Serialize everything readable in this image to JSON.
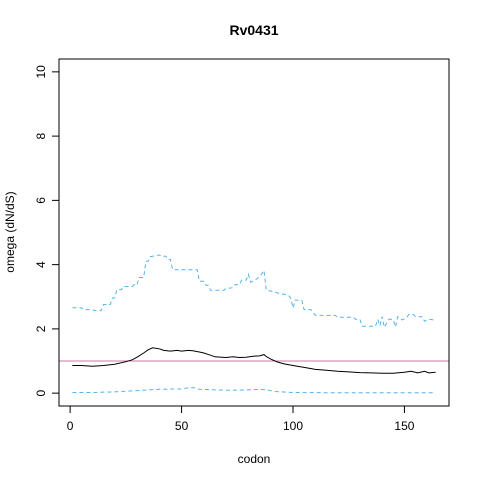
{
  "chart_data": {
    "type": "line",
    "title": "Rv0431",
    "xlabel": "codon",
    "ylabel": "omega (dN/dS)",
    "xlim": [
      -5,
      170
    ],
    "ylim": [
      0,
      10
    ],
    "x_ticks": [
      0,
      50,
      100,
      150
    ],
    "y_ticks": [
      0,
      2,
      4,
      6,
      8,
      10
    ],
    "reference_line": {
      "y": 1,
      "color": "#cc79a7"
    },
    "series": [
      {
        "role": "upper",
        "style": "dashed",
        "color": "#56b4e9",
        "points": [
          [
            1,
            2.66
          ],
          [
            5,
            2.66
          ],
          [
            6,
            2.6
          ],
          [
            10,
            2.6
          ],
          [
            11,
            2.57
          ],
          [
            14,
            2.57
          ],
          [
            15,
            2.76
          ],
          [
            18,
            2.76
          ],
          [
            19,
            2.96
          ],
          [
            20,
            2.96
          ],
          [
            21,
            3.22
          ],
          [
            23,
            3.22
          ],
          [
            24,
            3.32
          ],
          [
            28,
            3.32
          ],
          [
            29,
            3.4
          ],
          [
            30,
            3.38
          ],
          [
            31,
            3.6
          ],
          [
            33,
            3.6
          ],
          [
            34,
            4.1
          ],
          [
            35,
            4.1
          ],
          [
            36,
            4.25
          ],
          [
            40,
            4.3
          ],
          [
            41,
            4.26
          ],
          [
            43,
            4.26
          ],
          [
            44,
            4.16
          ],
          [
            45,
            4.16
          ],
          [
            46,
            3.84
          ],
          [
            57,
            3.84
          ],
          [
            58,
            3.48
          ],
          [
            60,
            3.48
          ],
          [
            61,
            3.36
          ],
          [
            62,
            3.36
          ],
          [
            63,
            3.2
          ],
          [
            69,
            3.2
          ],
          [
            70,
            3.26
          ],
          [
            73,
            3.28
          ],
          [
            74,
            3.38
          ],
          [
            76,
            3.38
          ],
          [
            77,
            3.52
          ],
          [
            79,
            3.52
          ],
          [
            80,
            3.7
          ],
          [
            81,
            3.45
          ],
          [
            83,
            3.52
          ],
          [
            85,
            3.62
          ],
          [
            87,
            3.82
          ],
          [
            88,
            3.2
          ],
          [
            90,
            3.18
          ],
          [
            93,
            3.12
          ],
          [
            98,
            3.05
          ],
          [
            99,
            2.95
          ],
          [
            100,
            2.65
          ],
          [
            101,
            2.9
          ],
          [
            104,
            2.88
          ],
          [
            105,
            2.6
          ],
          [
            108,
            2.6
          ],
          [
            109,
            2.52
          ],
          [
            110,
            2.42
          ],
          [
            119,
            2.42
          ],
          [
            120,
            2.36
          ],
          [
            127,
            2.36
          ],
          [
            128,
            2.3
          ],
          [
            130,
            2.3
          ],
          [
            131,
            2.08
          ],
          [
            137,
            2.08
          ],
          [
            138,
            2.3
          ],
          [
            139,
            2.1
          ],
          [
            140,
            2.38
          ],
          [
            141,
            2.05
          ],
          [
            143,
            2.3
          ],
          [
            145,
            2.3
          ],
          [
            146,
            2.06
          ],
          [
            147,
            2.38
          ],
          [
            149,
            2.28
          ],
          [
            151,
            2.35
          ],
          [
            152,
            2.45
          ],
          [
            154,
            2.45
          ],
          [
            155,
            2.38
          ],
          [
            158,
            2.38
          ],
          [
            159,
            2.24
          ],
          [
            161,
            2.3
          ],
          [
            163,
            2.28
          ],
          [
            164,
            2.24
          ]
        ]
      },
      {
        "role": "estimate",
        "style": "solid",
        "color": "#000000",
        "points": [
          [
            1,
            0.86
          ],
          [
            5,
            0.86
          ],
          [
            10,
            0.84
          ],
          [
            15,
            0.86
          ],
          [
            20,
            0.9
          ],
          [
            25,
            0.98
          ],
          [
            28,
            1.04
          ],
          [
            30,
            1.12
          ],
          [
            33,
            1.25
          ],
          [
            35,
            1.35
          ],
          [
            37,
            1.41
          ],
          [
            40,
            1.38
          ],
          [
            42,
            1.33
          ],
          [
            45,
            1.31
          ],
          [
            48,
            1.33
          ],
          [
            50,
            1.31
          ],
          [
            53,
            1.33
          ],
          [
            55,
            1.32
          ],
          [
            58,
            1.28
          ],
          [
            60,
            1.25
          ],
          [
            63,
            1.18
          ],
          [
            65,
            1.13
          ],
          [
            68,
            1.12
          ],
          [
            70,
            1.11
          ],
          [
            73,
            1.13
          ],
          [
            76,
            1.11
          ],
          [
            79,
            1.12
          ],
          [
            82,
            1.15
          ],
          [
            85,
            1.16
          ],
          [
            87,
            1.2
          ],
          [
            88,
            1.14
          ],
          [
            90,
            1.06
          ],
          [
            93,
            0.97
          ],
          [
            96,
            0.91
          ],
          [
            100,
            0.86
          ],
          [
            105,
            0.8
          ],
          [
            110,
            0.74
          ],
          [
            115,
            0.71
          ],
          [
            120,
            0.68
          ],
          [
            125,
            0.66
          ],
          [
            130,
            0.64
          ],
          [
            135,
            0.63
          ],
          [
            140,
            0.62
          ],
          [
            145,
            0.62
          ],
          [
            150,
            0.65
          ],
          [
            153,
            0.68
          ],
          [
            156,
            0.63
          ],
          [
            159,
            0.68
          ],
          [
            161,
            0.63
          ],
          [
            164,
            0.65
          ]
        ]
      },
      {
        "role": "lower",
        "style": "dashed",
        "color": "#56b4e9",
        "points": [
          [
            1,
            0.02
          ],
          [
            10,
            0.02
          ],
          [
            20,
            0.04
          ],
          [
            30,
            0.08
          ],
          [
            40,
            0.12
          ],
          [
            45,
            0.13
          ],
          [
            50,
            0.13
          ],
          [
            53,
            0.17
          ],
          [
            56,
            0.17
          ],
          [
            58,
            0.12
          ],
          [
            65,
            0.1
          ],
          [
            72,
            0.09
          ],
          [
            80,
            0.1
          ],
          [
            85,
            0.12
          ],
          [
            88,
            0.1
          ],
          [
            92,
            0.05
          ],
          [
            100,
            0.02
          ],
          [
            120,
            0.01
          ],
          [
            140,
            0.01
          ],
          [
            164,
            0.01
          ]
        ]
      }
    ]
  }
}
